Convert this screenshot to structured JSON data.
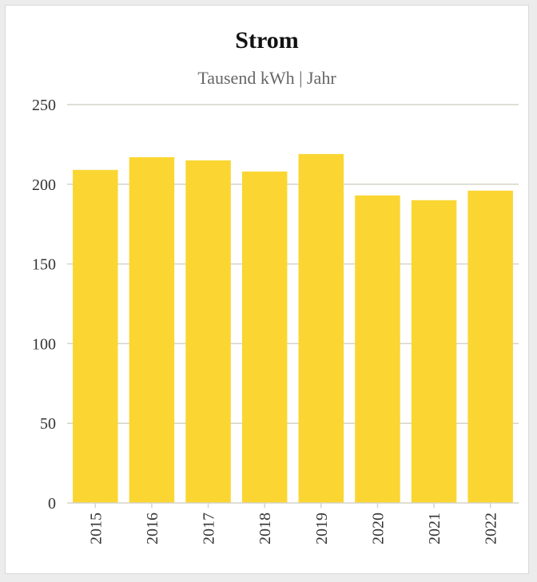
{
  "chart_data": {
    "type": "bar",
    "title": "Strom",
    "subtitle": "Tausend kWh | Jahr",
    "xlabel": "",
    "ylabel": "",
    "categories": [
      "2015",
      "2016",
      "2017",
      "2018",
      "2019",
      "2020",
      "2021",
      "2022"
    ],
    "values": [
      209,
      217,
      215,
      208,
      219,
      193,
      190,
      196
    ],
    "ylim": [
      0,
      250
    ],
    "yticks": [
      "0",
      "50",
      "100",
      "150",
      "200",
      "250"
    ],
    "grid": true,
    "legend": "none",
    "bar_color": "#fbd632",
    "grid_color": "#d4d4c8"
  }
}
